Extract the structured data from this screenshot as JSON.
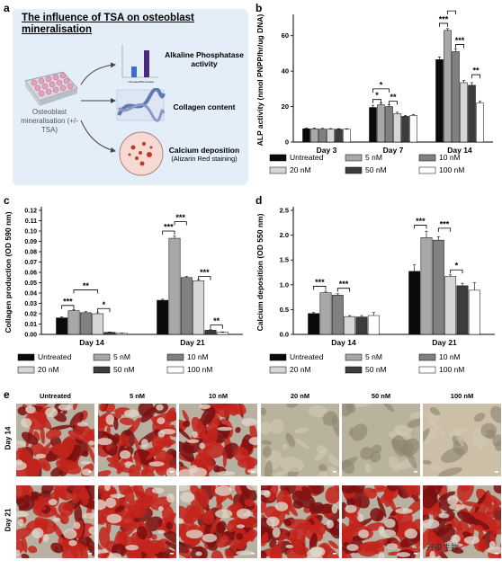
{
  "panel_a": {
    "letter": "a",
    "title": "The influence of TSA on osteoblast mineralisation",
    "left_label": "Osteoblast mineralisation (+/- TSA)",
    "items": [
      {
        "label": "Alkaline Phosphatase activity",
        "sub": ""
      },
      {
        "label": "Collagen content",
        "sub": ""
      },
      {
        "label": "Calcium deposition",
        "sub": "(Alizarin Red staining)"
      }
    ],
    "mini_chart_labels": [
      "Untreated",
      "TSA treated"
    ]
  },
  "legend_entries": [
    "Untreated",
    "5 nM",
    "10 nM",
    "20 nM",
    "50 nM",
    "100 nM"
  ],
  "series_colors": [
    "#0a0a0a",
    "#a8a8a8",
    "#808080",
    "#d6d6d6",
    "#3c3c3c",
    "#ffffff"
  ],
  "panel_e": {
    "letter": "e",
    "columns": [
      "Untreated",
      "5 nM",
      "10 nM",
      "20 nM",
      "50 nM",
      "100 nM"
    ],
    "rows": [
      "Day 14",
      "Day 21"
    ]
  },
  "watermark": "开泰生物",
  "chart_data": [
    {
      "id": "b",
      "letter": "b",
      "type": "bar",
      "ylabel": "ALP activity (nmol PNPP/hr/ug DNA)",
      "ylim": [
        0,
        70
      ],
      "yticks": [
        0,
        20,
        40,
        60
      ],
      "categories": [
        "Day 3",
        "Day 7",
        "Day 14"
      ],
      "series": [
        {
          "name": "Untreated",
          "values": [
            7.5,
            19.5,
            46.5
          ],
          "err": [
            0.4,
            1.2,
            1.5
          ]
        },
        {
          "name": "5 nM",
          "values": [
            7.5,
            21,
            63
          ],
          "err": [
            0.4,
            1,
            1
          ]
        },
        {
          "name": "10 nM",
          "values": [
            7.3,
            20,
            51
          ],
          "err": [
            0.4,
            1,
            1.5
          ]
        },
        {
          "name": "20 nM",
          "values": [
            7.3,
            16,
            33.5
          ],
          "err": [
            0.3,
            0.8,
            1.2
          ]
        },
        {
          "name": "50 nM",
          "values": [
            7.2,
            14.5,
            32
          ],
          "err": [
            0.3,
            0.6,
            1.5
          ]
        },
        {
          "name": "100 nM",
          "values": [
            7.2,
            15,
            22
          ],
          "err": [
            0.3,
            0.6,
            1
          ]
        }
      ],
      "significance": [
        {
          "cat": 1,
          "from": 0,
          "to": 1,
          "label": "*",
          "level": 24
        },
        {
          "cat": 1,
          "from": 0,
          "to": 2,
          "label": "*",
          "level": 30
        },
        {
          "cat": 1,
          "from": 2,
          "to": 3,
          "label": "**",
          "level": 23
        },
        {
          "cat": 2,
          "from": 0,
          "to": 1,
          "label": "***",
          "level": 67
        },
        {
          "cat": 2,
          "from": 1,
          "to": 2,
          "label": "***",
          "level": 74
        },
        {
          "cat": 2,
          "from": 2,
          "to": 3,
          "label": "***",
          "level": 55
        },
        {
          "cat": 2,
          "from": 4,
          "to": 5,
          "label": "**",
          "level": 38
        }
      ]
    },
    {
      "id": "c",
      "letter": "c",
      "type": "bar",
      "ylabel": "Collagen production (OD 590 nm)",
      "ylim": [
        0,
        0.12
      ],
      "yticks": [
        0,
        0.01,
        0.02,
        0.03,
        0.04,
        0.05,
        0.06,
        0.07,
        0.08,
        0.09,
        0.1,
        0.11,
        0.12
      ],
      "ytick_labels": [
        "0.00",
        "0.01",
        "0.02",
        "0.03",
        "0.04",
        "0.05",
        "0.06",
        "0.07",
        "0.08",
        "0.09",
        "0.10",
        "0.11",
        "0.12"
      ],
      "categories": [
        "Day 14",
        "Day 21"
      ],
      "series": [
        {
          "name": "Untreated",
          "values": [
            0.016,
            0.033
          ],
          "err": [
            0.001,
            0.001
          ]
        },
        {
          "name": "5 nM",
          "values": [
            0.023,
            0.093
          ],
          "err": [
            0.001,
            0.002
          ]
        },
        {
          "name": "10 nM",
          "values": [
            0.021,
            0.055
          ],
          "err": [
            0.001,
            0.001
          ]
        },
        {
          "name": "20 nM",
          "values": [
            0.02,
            0.052
          ],
          "err": [
            0.001,
            0.001
          ]
        },
        {
          "name": "50 nM",
          "values": [
            0.002,
            0.004
          ],
          "err": [
            0.0003,
            0.0006
          ]
        },
        {
          "name": "100 nM",
          "values": [
            0.001,
            0.002
          ],
          "err": [
            0.0003,
            0.0004
          ]
        }
      ],
      "significance": [
        {
          "cat": 0,
          "from": 0,
          "to": 1,
          "label": "***",
          "level": 0.028
        },
        {
          "cat": 0,
          "from": 1,
          "to": 3,
          "label": "**",
          "level": 0.043
        },
        {
          "cat": 0,
          "from": 3,
          "to": 4,
          "label": "*",
          "level": 0.025
        },
        {
          "cat": 1,
          "from": 0,
          "to": 1,
          "label": "***",
          "level": 0.1
        },
        {
          "cat": 1,
          "from": 1,
          "to": 2,
          "label": "***",
          "level": 0.109
        },
        {
          "cat": 1,
          "from": 3,
          "to": 4,
          "label": "***",
          "level": 0.056
        },
        {
          "cat": 1,
          "from": 4,
          "to": 5,
          "label": "**",
          "level": 0.009
        }
      ]
    },
    {
      "id": "d",
      "letter": "d",
      "type": "bar",
      "ylabel": "Calcium deposition (OD 550 nm)",
      "ylim": [
        0,
        2.5
      ],
      "yticks": [
        0,
        0.5,
        1.0,
        1.5,
        2.0,
        2.5
      ],
      "ytick_labels": [
        "0.0",
        "0.5",
        "1.0",
        "1.5",
        "2.0",
        "2.5"
      ],
      "categories": [
        "Day 14",
        "Day 21"
      ],
      "series": [
        {
          "name": "Untreated",
          "values": [
            0.42,
            1.27
          ],
          "err": [
            0.02,
            0.13
          ]
        },
        {
          "name": "5 nM",
          "values": [
            0.84,
            1.95
          ],
          "err": [
            0.03,
            0.13
          ]
        },
        {
          "name": "10 nM",
          "values": [
            0.79,
            1.9
          ],
          "err": [
            0.03,
            0.07
          ]
        },
        {
          "name": "20 nM",
          "values": [
            0.36,
            1.17
          ],
          "err": [
            0.02,
            0.03
          ]
        },
        {
          "name": "50 nM",
          "values": [
            0.35,
            0.98
          ],
          "err": [
            0.03,
            0.05
          ]
        },
        {
          "name": "100 nM",
          "values": [
            0.38,
            0.89
          ],
          "err": [
            0.06,
            0.15
          ]
        }
      ],
      "significance": [
        {
          "cat": 0,
          "from": 0,
          "to": 1,
          "label": "***",
          "level": 0.97
        },
        {
          "cat": 0,
          "from": 2,
          "to": 3,
          "label": "***",
          "level": 0.93
        },
        {
          "cat": 1,
          "from": 0,
          "to": 1,
          "label": "***",
          "level": 2.2
        },
        {
          "cat": 1,
          "from": 2,
          "to": 3,
          "label": "***",
          "level": 2.14
        },
        {
          "cat": 1,
          "from": 3,
          "to": 4,
          "label": "*",
          "level": 1.3
        }
      ]
    }
  ]
}
